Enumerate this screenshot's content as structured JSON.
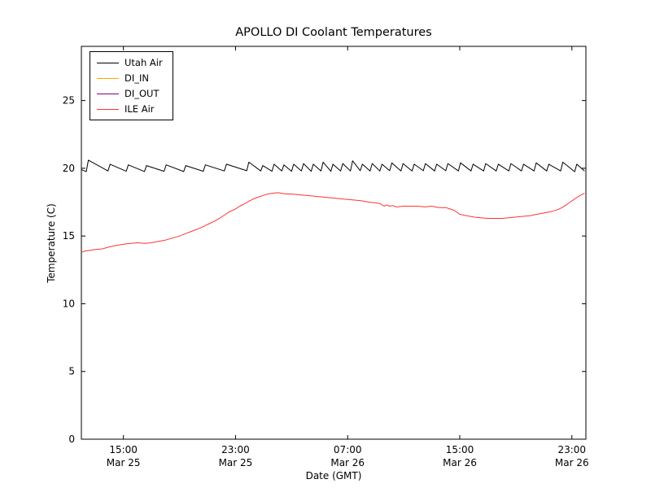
{
  "chart_data": {
    "type": "line",
    "title": "APOLLO DI Coolant Temperatures",
    "xlabel": "Date (GMT)",
    "ylabel": "Temperature (C)",
    "x_unit": "hours since Mar 25 12:00 GMT",
    "xlim": [
      0,
      36
    ],
    "ylim": [
      0,
      29
    ],
    "grid": false,
    "legend_position": "upper-left",
    "yticks": [
      0,
      5,
      10,
      15,
      20,
      25
    ],
    "xticks": [
      {
        "pos": 3,
        "time": "15:00",
        "date": "Mar 25"
      },
      {
        "pos": 11,
        "time": "23:00",
        "date": "Mar 25"
      },
      {
        "pos": 19,
        "time": "07:00",
        "date": "Mar 26"
      },
      {
        "pos": 27,
        "time": "15:00",
        "date": "Mar 26"
      },
      {
        "pos": 35,
        "time": "23:00",
        "date": "Mar 26"
      }
    ],
    "series": [
      {
        "name": "Utah Air",
        "color": "#000000",
        "points": [
          [
            0,
            19.9
          ],
          [
            0.35,
            19.75
          ],
          [
            0.5,
            20.6
          ],
          [
            1.9,
            19.8
          ],
          [
            2.05,
            20.3
          ],
          [
            3.2,
            19.78
          ],
          [
            3.35,
            20.25
          ],
          [
            4.5,
            19.76
          ],
          [
            4.65,
            20.2
          ],
          [
            5.9,
            19.78
          ],
          [
            6.05,
            20.25
          ],
          [
            7.3,
            19.76
          ],
          [
            7.45,
            20.2
          ],
          [
            8.7,
            19.78
          ],
          [
            8.85,
            20.25
          ],
          [
            10.2,
            19.8
          ],
          [
            10.35,
            20.3
          ],
          [
            11.8,
            19.82
          ],
          [
            11.95,
            20.45
          ],
          [
            12.8,
            19.8
          ],
          [
            12.95,
            20.2
          ],
          [
            13.6,
            19.78
          ],
          [
            13.75,
            20.3
          ],
          [
            14.3,
            19.8
          ],
          [
            14.45,
            20.25
          ],
          [
            15.0,
            19.78
          ],
          [
            15.15,
            20.3
          ],
          [
            15.7,
            19.8
          ],
          [
            15.85,
            20.35
          ],
          [
            16.4,
            19.78
          ],
          [
            16.55,
            20.3
          ],
          [
            17.1,
            19.8
          ],
          [
            17.25,
            20.45
          ],
          [
            17.8,
            19.78
          ],
          [
            17.95,
            20.3
          ],
          [
            18.5,
            19.8
          ],
          [
            18.65,
            20.35
          ],
          [
            19.2,
            19.8
          ],
          [
            19.35,
            20.55
          ],
          [
            19.9,
            19.82
          ],
          [
            20.05,
            20.3
          ],
          [
            20.6,
            19.8
          ],
          [
            20.75,
            20.35
          ],
          [
            21.3,
            19.8
          ],
          [
            21.45,
            20.3
          ],
          [
            22.0,
            19.82
          ],
          [
            22.15,
            20.4
          ],
          [
            22.8,
            19.8
          ],
          [
            22.95,
            20.35
          ],
          [
            23.6,
            19.8
          ],
          [
            23.75,
            20.3
          ],
          [
            24.4,
            19.82
          ],
          [
            24.55,
            20.35
          ],
          [
            25.2,
            19.8
          ],
          [
            25.35,
            20.3
          ],
          [
            26.0,
            19.82
          ],
          [
            26.15,
            20.35
          ],
          [
            26.9,
            19.8
          ],
          [
            27.05,
            20.4
          ],
          [
            27.8,
            19.8
          ],
          [
            27.95,
            20.3
          ],
          [
            28.7,
            19.8
          ],
          [
            28.85,
            20.35
          ],
          [
            29.6,
            19.8
          ],
          [
            29.75,
            20.3
          ],
          [
            30.5,
            19.8
          ],
          [
            30.65,
            20.35
          ],
          [
            31.4,
            19.8
          ],
          [
            31.55,
            20.3
          ],
          [
            32.3,
            19.8
          ],
          [
            32.45,
            20.4
          ],
          [
            33.2,
            19.8
          ],
          [
            33.35,
            20.3
          ],
          [
            34.2,
            19.8
          ],
          [
            34.35,
            20.45
          ],
          [
            35.2,
            19.75
          ],
          [
            35.35,
            20.3
          ],
          [
            35.9,
            19.8
          ]
        ]
      },
      {
        "name": "DI_IN",
        "color": "#ffa500",
        "points": []
      },
      {
        "name": "DI_OUT",
        "color": "#800080",
        "points": []
      },
      {
        "name": "ILE Air",
        "color": "#ff3333",
        "points": [
          [
            0,
            13.8
          ],
          [
            0.3,
            13.9
          ],
          [
            1,
            14.0
          ],
          [
            1.5,
            14.05
          ],
          [
            2,
            14.2
          ],
          [
            2.5,
            14.3
          ],
          [
            3,
            14.4
          ],
          [
            3.5,
            14.45
          ],
          [
            4,
            14.5
          ],
          [
            4.5,
            14.45
          ],
          [
            5,
            14.5
          ],
          [
            5.5,
            14.6
          ],
          [
            6,
            14.7
          ],
          [
            6.5,
            14.85
          ],
          [
            7,
            15.0
          ],
          [
            7.5,
            15.2
          ],
          [
            8,
            15.4
          ],
          [
            8.5,
            15.6
          ],
          [
            9,
            15.85
          ],
          [
            9.5,
            16.1
          ],
          [
            10,
            16.4
          ],
          [
            10.5,
            16.75
          ],
          [
            11,
            17.0
          ],
          [
            11.3,
            17.2
          ],
          [
            11.6,
            17.35
          ],
          [
            12,
            17.6
          ],
          [
            12.3,
            17.75
          ],
          [
            12.7,
            17.9
          ],
          [
            13,
            18.0
          ],
          [
            13.3,
            18.1
          ],
          [
            13.6,
            18.15
          ],
          [
            14,
            18.2
          ],
          [
            14.3,
            18.15
          ],
          [
            14.6,
            18.1
          ],
          [
            15,
            18.1
          ],
          [
            15.5,
            18.05
          ],
          [
            16,
            18.0
          ],
          [
            16.5,
            17.95
          ],
          [
            17,
            17.9
          ],
          [
            17.5,
            17.85
          ],
          [
            18,
            17.8
          ],
          [
            18.5,
            17.75
          ],
          [
            19,
            17.7
          ],
          [
            19.5,
            17.65
          ],
          [
            20,
            17.6
          ],
          [
            20.5,
            17.5
          ],
          [
            21,
            17.45
          ],
          [
            21.3,
            17.4
          ],
          [
            21.6,
            17.2
          ],
          [
            21.8,
            17.3
          ],
          [
            22,
            17.2
          ],
          [
            22.2,
            17.25
          ],
          [
            22.5,
            17.15
          ],
          [
            23,
            17.2
          ],
          [
            23.5,
            17.2
          ],
          [
            24,
            17.2
          ],
          [
            24.5,
            17.15
          ],
          [
            25,
            17.2
          ],
          [
            25.5,
            17.1
          ],
          [
            26,
            17.1
          ],
          [
            26.3,
            17.0
          ],
          [
            26.6,
            16.9
          ],
          [
            27,
            16.6
          ],
          [
            27.5,
            16.5
          ],
          [
            28,
            16.4
          ],
          [
            28.5,
            16.35
          ],
          [
            29,
            16.3
          ],
          [
            29.5,
            16.3
          ],
          [
            30,
            16.3
          ],
          [
            30.5,
            16.35
          ],
          [
            31,
            16.4
          ],
          [
            31.5,
            16.45
          ],
          [
            32,
            16.5
          ],
          [
            32.5,
            16.6
          ],
          [
            33,
            16.7
          ],
          [
            33.5,
            16.8
          ],
          [
            34,
            16.95
          ],
          [
            34.3,
            17.1
          ],
          [
            34.6,
            17.3
          ],
          [
            35,
            17.6
          ],
          [
            35.3,
            17.8
          ],
          [
            35.6,
            18.0
          ],
          [
            35.9,
            18.15
          ]
        ]
      }
    ]
  }
}
